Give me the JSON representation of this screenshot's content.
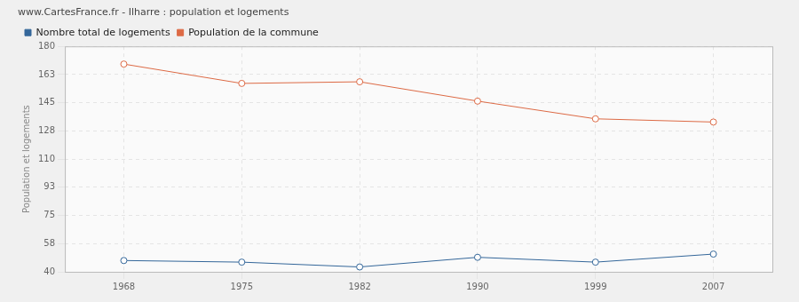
{
  "chart_data": {
    "type": "line",
    "title": "www.CartesFrance.fr - Ilharre : population et logements",
    "y_label": "Population et logements",
    "categories": [
      "1968",
      "1975",
      "1982",
      "1990",
      "1999",
      "2007"
    ],
    "series": [
      {
        "name": "Nombre total de logements",
        "color": "#34679a",
        "values": [
          47,
          46,
          43,
          49,
          46,
          51
        ]
      },
      {
        "name": "Population de la commune",
        "color": "#dd6a45",
        "values": [
          169,
          157,
          158,
          146,
          135,
          133
        ]
      }
    ],
    "ylim": [
      40,
      180
    ],
    "yticks": [
      40,
      {
        "value": 57.5,
        "label": "58"
      },
      75,
      {
        "value": 92.5,
        "label": "93"
      },
      110,
      {
        "value": 127.5,
        "label": "128"
      },
      145,
      {
        "value": 162.5,
        "label": "163"
      },
      180
    ],
    "grid": true,
    "legend": "top",
    "marker": "circle"
  }
}
